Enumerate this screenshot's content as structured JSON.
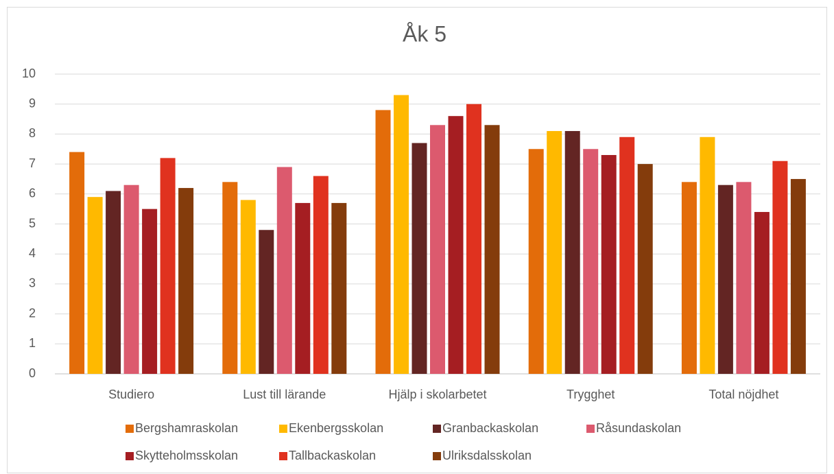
{
  "chart_data": {
    "type": "bar",
    "title": "Åk 5",
    "categories": [
      "Studiero",
      "Lust till lärande",
      "Hjälp i skolarbetet",
      "Trygghet",
      "Total nöjdhet"
    ],
    "series": [
      {
        "name": "Bergshamraskolan",
        "color": "#e36c0a",
        "values": [
          7.4,
          6.4,
          8.8,
          7.5,
          6.4
        ]
      },
      {
        "name": "Ekenbergsskolan",
        "color": "#ffb900",
        "values": [
          5.9,
          5.8,
          9.3,
          8.1,
          7.9
        ]
      },
      {
        "name": "Granbackaskolan",
        "color": "#632523",
        "values": [
          6.1,
          4.8,
          7.7,
          8.1,
          6.3
        ]
      },
      {
        "name": "Råsundaskolan",
        "color": "#dc5a6e",
        "values": [
          6.3,
          6.9,
          8.3,
          7.5,
          6.4
        ]
      },
      {
        "name": "Skytteholmsskolan",
        "color": "#a51e22",
        "values": [
          5.5,
          5.7,
          8.6,
          7.3,
          5.4
        ]
      },
      {
        "name": "Tallbackaskolan",
        "color": "#e0321f",
        "values": [
          7.2,
          6.6,
          9.0,
          7.9,
          7.1
        ]
      },
      {
        "name": "Ulriksdalsskolan",
        "color": "#843c0c",
        "values": [
          6.2,
          5.7,
          8.3,
          7.0,
          6.5
        ]
      }
    ],
    "ylim": [
      0,
      10
    ],
    "yticks": [
      0,
      1,
      2,
      3,
      4,
      5,
      6,
      7,
      8,
      9,
      10
    ],
    "grid": true,
    "legend": "bottom"
  }
}
